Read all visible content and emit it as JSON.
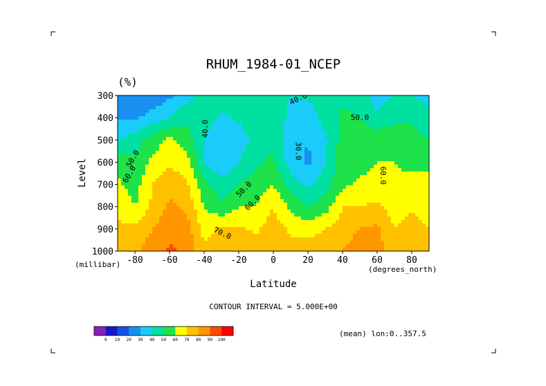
{
  "chart_data": {
    "type": "heatmap",
    "title": "RHUM_1984-01_NCEP",
    "units": "(%)",
    "xlabel": "Latitude",
    "ylabel": "Level",
    "x_units": "(degrees_north)",
    "y_units": "(millibar)",
    "xlim": [
      -90,
      90
    ],
    "ylim": [
      1000,
      300
    ],
    "x_ticks": [
      "-80",
      "-60",
      "-40",
      "-20",
      "0",
      "20",
      "40",
      "60",
      "80"
    ],
    "y_ticks": [
      "300",
      "400",
      "500",
      "600",
      "700",
      "800",
      "900",
      "1000"
    ],
    "contour_interval_text": "CONTOUR INTERVAL = 5.000E+00",
    "mean_text": "(mean) lon:0..357.5",
    "contour_labels": [
      {
        "text": "40.0",
        "lat": 15,
        "level": 325,
        "rotate": -25
      },
      {
        "text": "50.0",
        "lat": 50,
        "level": 410,
        "rotate": 0
      },
      {
        "text": "40.0",
        "lat": -38,
        "level": 450,
        "rotate": -90
      },
      {
        "text": "30.0",
        "lat": 13,
        "level": 550,
        "rotate": 90
      },
      {
        "text": "50.0",
        "lat": -80,
        "level": 590,
        "rotate": -60
      },
      {
        "text": "60.0",
        "lat": -82,
        "level": 660,
        "rotate": -60
      },
      {
        "text": "60.0",
        "lat": 62,
        "level": 660,
        "rotate": 90
      },
      {
        "text": "50.0",
        "lat": -16,
        "level": 730,
        "rotate": -45
      },
      {
        "text": "60.0",
        "lat": -11,
        "level": 790,
        "rotate": -45
      },
      {
        "text": "70.0",
        "lat": -30,
        "level": 930,
        "rotate": 25
      }
    ],
    "colorbar": {
      "labels": [
        "0",
        "10",
        "20",
        "30",
        "40",
        "50",
        "60",
        "70",
        "80",
        "90",
        "100"
      ],
      "colors": [
        "#8b1fb8",
        "#1818c8",
        "#1450e6",
        "#1890f0",
        "#19ccfa",
        "#00e0a0",
        "#1ee24a",
        "#ffff00",
        "#ffc000",
        "#ff9600",
        "#ff4a00",
        "#ff0000"
      ]
    },
    "profiles": [
      {
        "lat": -90,
        "values": [
          27,
          30,
          40,
          55,
          62,
          68,
          72,
          76
        ]
      },
      {
        "lat": -80,
        "values": [
          22,
          28,
          45,
          52,
          55,
          60,
          72,
          78
        ]
      },
      {
        "lat": -70,
        "values": [
          20,
          35,
          55,
          62,
          70,
          72,
          80,
          85
        ]
      },
      {
        "lat": -60,
        "values": [
          28,
          40,
          62,
          68,
          76,
          82,
          86,
          92
        ]
      },
      {
        "lat": -50,
        "values": [
          36,
          48,
          55,
          65,
          72,
          78,
          85,
          87
        ]
      },
      {
        "lat": -40,
        "values": [
          45,
          45,
          40,
          40,
          52,
          60,
          66,
          72
        ]
      },
      {
        "lat": -30,
        "values": [
          48,
          38,
          32,
          30,
          45,
          52,
          72,
          78
        ]
      },
      {
        "lat": -20,
        "values": [
          50,
          42,
          34,
          40,
          50,
          60,
          72,
          78
        ]
      },
      {
        "lat": -10,
        "values": [
          48,
          45,
          45,
          48,
          55,
          60,
          68,
          77
        ]
      },
      {
        "lat": 0,
        "values": [
          43,
          45,
          46,
          52,
          60,
          70,
          75,
          78
        ]
      },
      {
        "lat": 10,
        "values": [
          40,
          38,
          35,
          35,
          45,
          58,
          68,
          75
        ]
      },
      {
        "lat": 20,
        "values": [
          42,
          32,
          30,
          28,
          38,
          50,
          66,
          75
        ]
      },
      {
        "lat": 30,
        "values": [
          50,
          45,
          38,
          40,
          45,
          55,
          70,
          78
        ]
      },
      {
        "lat": 40,
        "values": [
          48,
          52,
          55,
          55,
          58,
          70,
          75,
          80
        ]
      },
      {
        "lat": 50,
        "values": [
          45,
          50,
          55,
          57,
          62,
          70,
          80,
          85
        ]
      },
      {
        "lat": 60,
        "values": [
          35,
          42,
          58,
          60,
          62,
          72,
          82,
          86
        ]
      },
      {
        "lat": 70,
        "values": [
          40,
          48,
          55,
          60,
          62,
          65,
          70,
          72
        ]
      },
      {
        "lat": 80,
        "values": [
          40,
          48,
          55,
          56,
          65,
          68,
          75,
          78
        ]
      },
      {
        "lat": 90,
        "values": [
          38,
          42,
          50,
          58,
          62,
          66,
          70,
          72
        ]
      }
    ]
  }
}
